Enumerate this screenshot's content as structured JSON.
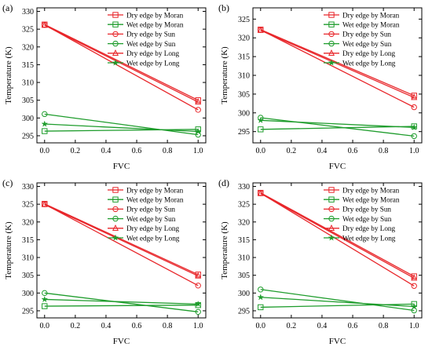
{
  "figure": {
    "panels": [
      "(a)",
      "(b)",
      "(c)",
      "(d)"
    ]
  },
  "colors": {
    "dry": "#e8262a",
    "wet": "#1e9c2c"
  },
  "chart_data": [
    {
      "type": "line",
      "panel_label": "(a)",
      "xlabel": "FVC",
      "ylabel": "Temperature (K)",
      "xlim": [
        -0.05,
        1.05
      ],
      "ylim": [
        293,
        331
      ],
      "xticks": [
        "0.0",
        "0.2",
        "0.4",
        "0.6",
        "0.8",
        "1.0"
      ],
      "yticks": [
        "295",
        "300",
        "305",
        "310",
        "315",
        "320",
        "325",
        "330"
      ],
      "legend_position": "top-right",
      "x": [
        0,
        1
      ],
      "series": [
        {
          "name": "Dry edge by Moran",
          "kind": "dry",
          "marker": "square",
          "values": [
            326.3,
            305.0
          ]
        },
        {
          "name": "Wet edge by Moran",
          "kind": "wet",
          "marker": "square",
          "values": [
            296.3,
            296.8
          ]
        },
        {
          "name": "Dry edge by Sun",
          "kind": "dry",
          "marker": "circle",
          "values": [
            326.2,
            302.3
          ]
        },
        {
          "name": "Wet edge by Sun",
          "kind": "wet",
          "marker": "circle",
          "values": [
            301.1,
            295.3
          ]
        },
        {
          "name": "Dry edge by Long",
          "kind": "dry",
          "marker": "triangle",
          "values": [
            326.1,
            304.5
          ]
        },
        {
          "name": "Wet edge by Long",
          "kind": "wet",
          "marker": "star",
          "values": [
            298.3,
            296.2
          ]
        }
      ]
    },
    {
      "type": "line",
      "panel_label": "(b)",
      "xlabel": "FVC",
      "ylabel": "Temperature (K)",
      "xlim": [
        -0.05,
        1.05
      ],
      "ylim": [
        292,
        328
      ],
      "xticks": [
        "0.0",
        "0.2",
        "0.4",
        "0.6",
        "0.8",
        "1.0"
      ],
      "yticks": [
        "295",
        "300",
        "305",
        "310",
        "315",
        "320",
        "325"
      ],
      "legend_position": "top-right",
      "x": [
        0,
        1
      ],
      "series": [
        {
          "name": "Dry edge by Moran",
          "kind": "dry",
          "marker": "square",
          "values": [
            322.2,
            304.6
          ]
        },
        {
          "name": "Wet edge by Moran",
          "kind": "wet",
          "marker": "square",
          "values": [
            295.6,
            296.4
          ]
        },
        {
          "name": "Dry edge by Sun",
          "kind": "dry",
          "marker": "circle",
          "values": [
            322.1,
            301.5
          ]
        },
        {
          "name": "Wet edge by Sun",
          "kind": "wet",
          "marker": "circle",
          "values": [
            298.7,
            293.8
          ]
        },
        {
          "name": "Dry edge by Long",
          "kind": "dry",
          "marker": "triangle",
          "values": [
            322.0,
            304.1
          ]
        },
        {
          "name": "Wet edge by Long",
          "kind": "wet",
          "marker": "star",
          "values": [
            298.0,
            296.1
          ]
        }
      ]
    },
    {
      "type": "line",
      "panel_label": "(c)",
      "xlabel": "FVC",
      "ylabel": "Temperature (K)",
      "xlim": [
        -0.05,
        1.05
      ],
      "ylim": [
        293,
        331
      ],
      "xticks": [
        "0.0",
        "0.2",
        "0.4",
        "0.6",
        "0.8",
        "1.0"
      ],
      "yticks": [
        "295",
        "300",
        "305",
        "310",
        "315",
        "320",
        "325",
        "330"
      ],
      "legend_position": "top-right",
      "x": [
        0,
        1
      ],
      "series": [
        {
          "name": "Dry edge by Moran",
          "kind": "dry",
          "marker": "square",
          "values": [
            325.1,
            305.2
          ]
        },
        {
          "name": "Wet edge by Moran",
          "kind": "wet",
          "marker": "square",
          "values": [
            296.3,
            296.6
          ]
        },
        {
          "name": "Dry edge by Sun",
          "kind": "dry",
          "marker": "circle",
          "values": [
            325.0,
            302.1
          ]
        },
        {
          "name": "Wet edge by Sun",
          "kind": "wet",
          "marker": "circle",
          "values": [
            300.0,
            294.7
          ]
        },
        {
          "name": "Dry edge by Long",
          "kind": "dry",
          "marker": "triangle",
          "values": [
            324.9,
            304.8
          ]
        },
        {
          "name": "Wet edge by Long",
          "kind": "wet",
          "marker": "star",
          "values": [
            298.2,
            296.9
          ]
        }
      ]
    },
    {
      "type": "line",
      "panel_label": "(d)",
      "xlabel": "FVC",
      "ylabel": "Temperature (K)",
      "xlim": [
        -0.05,
        1.05
      ],
      "ylim": [
        293,
        331
      ],
      "xticks": [
        "0.0",
        "0.2",
        "0.4",
        "0.6",
        "0.8",
        "1.0"
      ],
      "yticks": [
        "295",
        "300",
        "305",
        "310",
        "315",
        "320",
        "325",
        "330"
      ],
      "legend_position": "top-right",
      "x": [
        0,
        1
      ],
      "series": [
        {
          "name": "Dry edge by Moran",
          "kind": "dry",
          "marker": "square",
          "values": [
            328.2,
            304.7
          ]
        },
        {
          "name": "Wet edge by Moran",
          "kind": "wet",
          "marker": "square",
          "values": [
            296.0,
            296.9
          ]
        },
        {
          "name": "Dry edge by Sun",
          "kind": "dry",
          "marker": "circle",
          "values": [
            328.1,
            302.0
          ]
        },
        {
          "name": "Wet edge by Sun",
          "kind": "wet",
          "marker": "circle",
          "values": [
            301.0,
            295.1
          ]
        },
        {
          "name": "Dry edge by Long",
          "kind": "dry",
          "marker": "triangle",
          "values": [
            328.0,
            304.2
          ]
        },
        {
          "name": "Wet edge by Long",
          "kind": "wet",
          "marker": "star",
          "values": [
            298.8,
            296.2
          ]
        }
      ]
    }
  ]
}
